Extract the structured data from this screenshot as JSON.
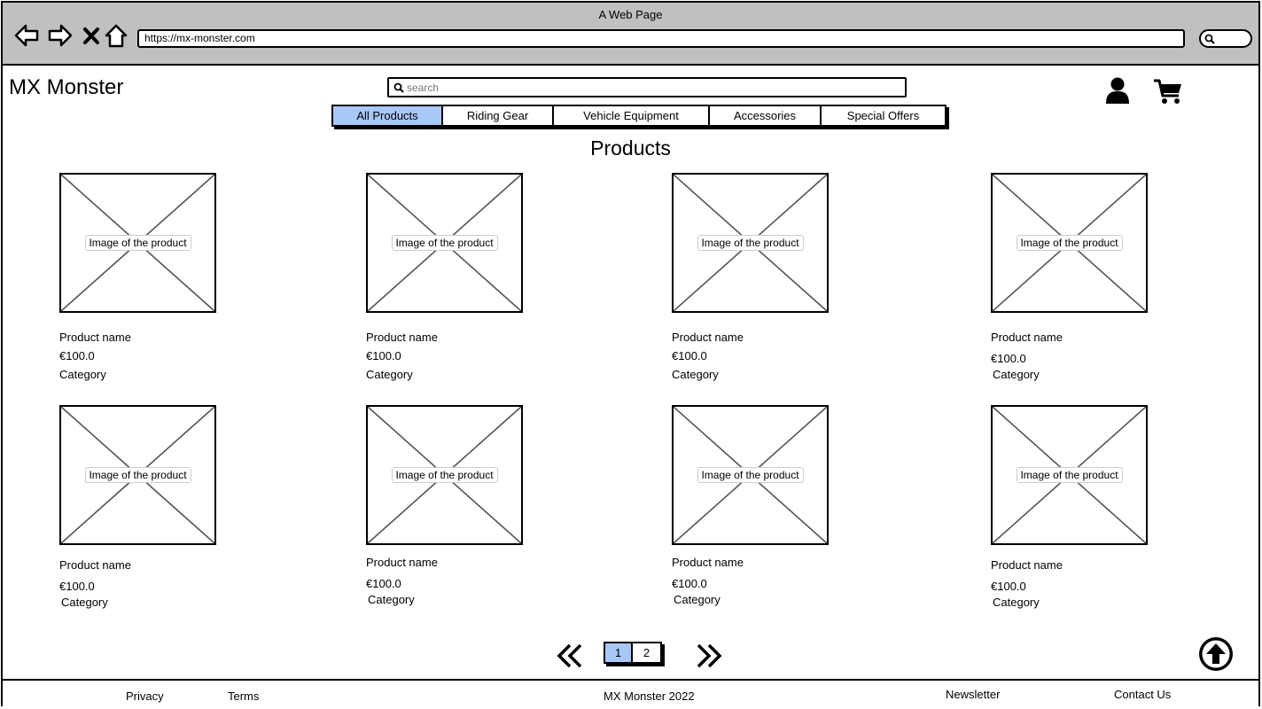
{
  "browser": {
    "window_title": "A Web Page",
    "url": "https://mx-monster.com"
  },
  "header": {
    "logo": "MX Monster",
    "search_placeholder": "search"
  },
  "tabs": [
    {
      "label": "All Products",
      "active": true
    },
    {
      "label": "Riding Gear",
      "active": false
    },
    {
      "label": "Vehicle Equipment",
      "active": false
    },
    {
      "label": "Accessories",
      "active": false
    },
    {
      "label": "Special Offers",
      "active": false
    }
  ],
  "main": {
    "title": "Products"
  },
  "products": [
    {
      "image_label": "Image of the product",
      "name": "Product name",
      "price": "€100.0",
      "category": "Category"
    },
    {
      "image_label": "Image of the product",
      "name": "Product name",
      "price": "€100.0",
      "category": "Category"
    },
    {
      "image_label": "Image of the product",
      "name": "Product name",
      "price": "€100.0",
      "category": "Category"
    },
    {
      "image_label": "Image of the product",
      "name": "Product name",
      "price": "€100.0",
      "category": "Category"
    },
    {
      "image_label": "Image of the product",
      "name": "Product name",
      "price": "€100.0",
      "category": "Category"
    },
    {
      "image_label": "Image of the product",
      "name": "Product name",
      "price": "€100.0",
      "category": "Category"
    },
    {
      "image_label": "Image of the product",
      "name": "Product name",
      "price": "€100.0",
      "category": "Category"
    },
    {
      "image_label": "Image of the product",
      "name": "Product name",
      "price": "€100.0",
      "category": "Category"
    }
  ],
  "pagination": {
    "pages": [
      {
        "label": "1",
        "active": true
      },
      {
        "label": "2",
        "active": false
      }
    ]
  },
  "footer": {
    "privacy": "Privacy",
    "terms": "Terms",
    "copyright": "MX Monster 2022",
    "newsletter": "Newsletter",
    "contact": "Contact Us"
  },
  "colors": {
    "active_tab": "#a8c8f8",
    "chrome": "#c0c0c0"
  }
}
